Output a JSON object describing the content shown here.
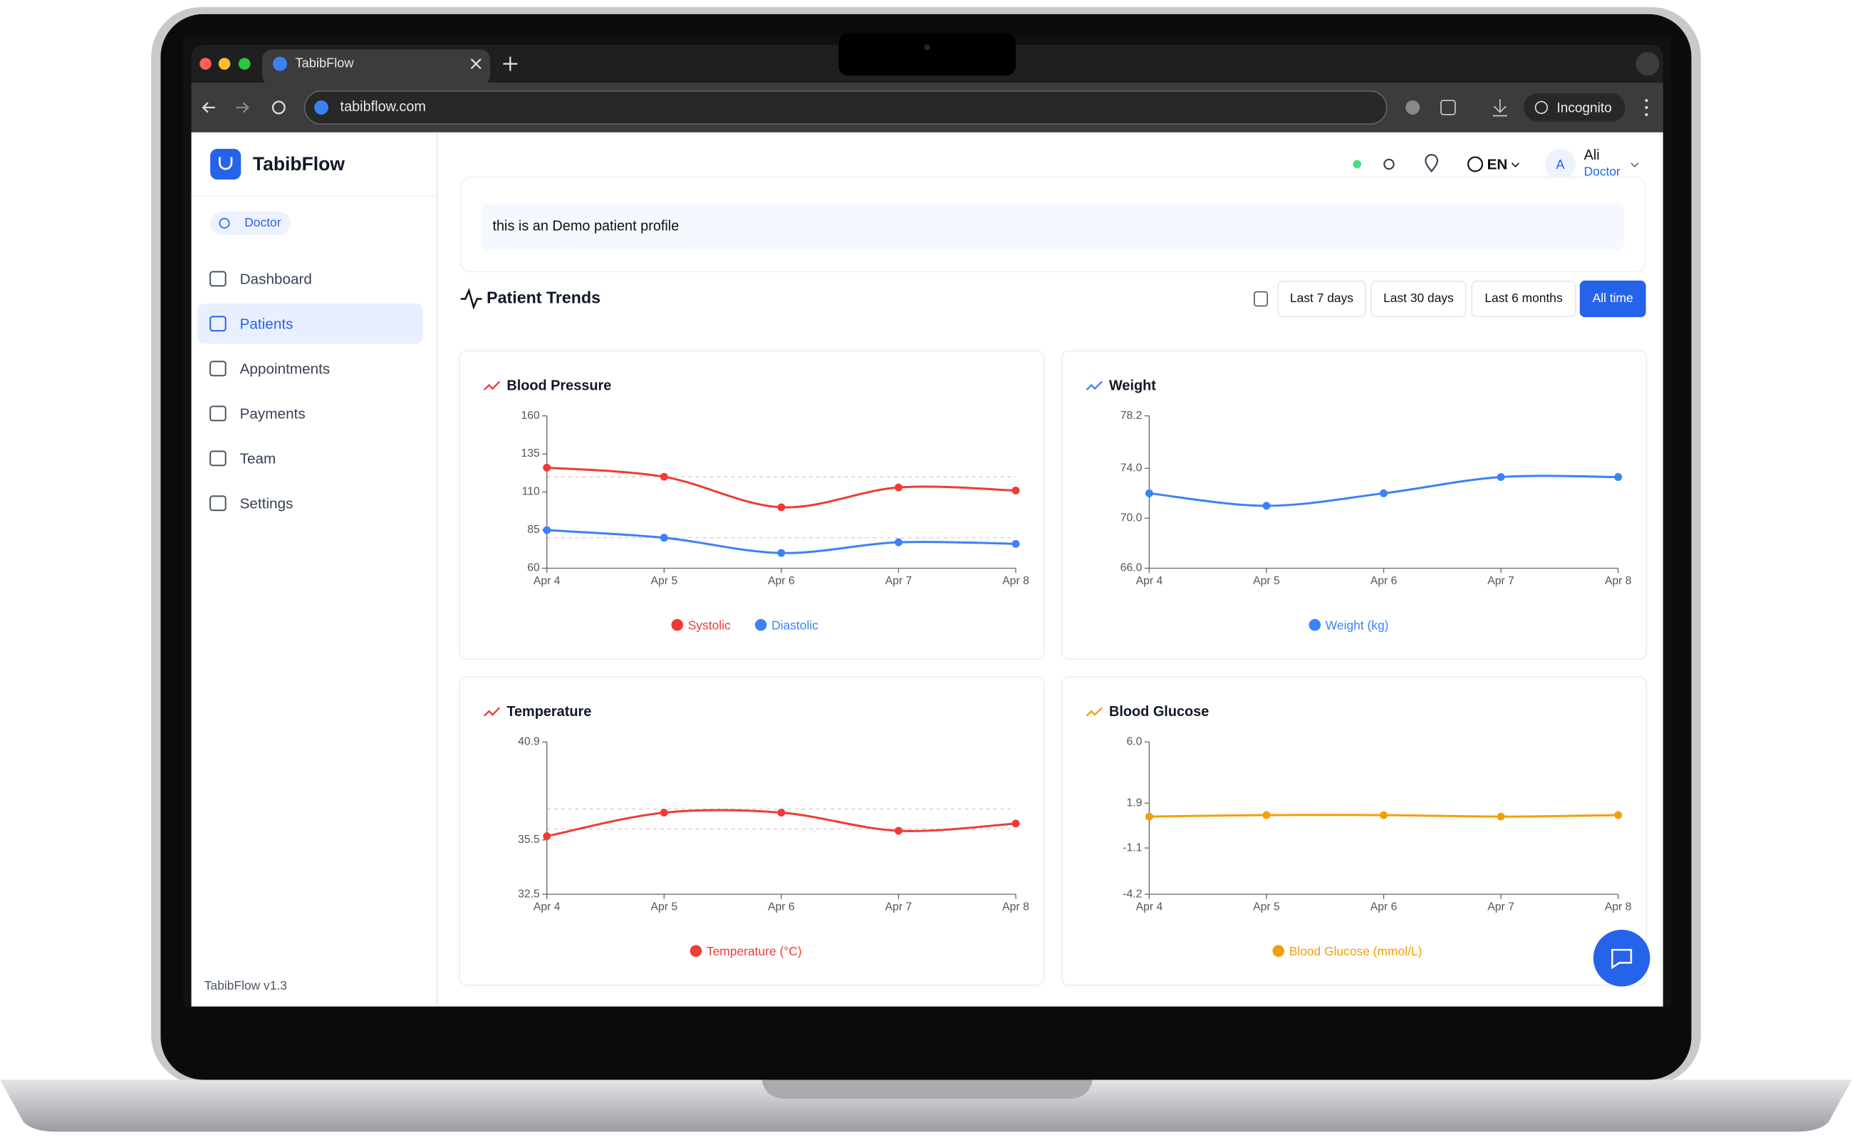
{
  "browser": {
    "tab_title": "TabibFlow",
    "url": "tabibflow.com",
    "mode": "Incognito"
  },
  "sidebar": {
    "brand": "TabibFlow",
    "role": "Doctor",
    "nav": [
      "Dashboard",
      "Patients",
      "Appointments",
      "Payments",
      "Team",
      "Settings"
    ],
    "active": 1,
    "version": "TabibFlow v1.3"
  },
  "header": {
    "language": "EN",
    "avatar": "A",
    "user_name": "Ali",
    "user_role": "Doctor"
  },
  "note": "this is an Demo patient profile",
  "trends": {
    "title": "Patient Trends",
    "ranges": [
      "Last 7 days",
      "Last 30 days",
      "Last 6 months",
      "All time"
    ],
    "active_range": 3
  },
  "chart_data": [
    {
      "type": "line",
      "title": "Blood Pressure",
      "categories": [
        "Apr 4",
        "Apr 5",
        "Apr 6",
        "Apr 7",
        "Apr 8"
      ],
      "series": [
        {
          "name": "Systolic",
          "color": "#ef3b36",
          "values": [
            126,
            120,
            100,
            113,
            111
          ]
        },
        {
          "name": "Diastolic",
          "color": "#3b82f6",
          "values": [
            85,
            80,
            70,
            77,
            76
          ]
        }
      ],
      "ylim": [
        60,
        160
      ],
      "yticks": [
        60,
        85,
        110,
        135,
        160
      ],
      "reference_lines": [
        120,
        80
      ]
    },
    {
      "type": "line",
      "title": "Weight",
      "categories": [
        "Apr 4",
        "Apr 5",
        "Apr 6",
        "Apr 7",
        "Apr 8"
      ],
      "series": [
        {
          "name": "Weight (kg)",
          "color": "#3b82f6",
          "values": [
            72,
            71,
            72,
            73.3,
            73.3
          ]
        }
      ],
      "ylim": [
        66,
        78.2
      ],
      "yticks": [
        {
          "value": 66,
          "label": "66.0"
        },
        {
          "value": 70,
          "label": "70.0"
        },
        {
          "value": 74,
          "label": "74.0"
        },
        78.2
      ]
    },
    {
      "type": "line",
      "title": "Temperature",
      "categories": [
        "Apr 4",
        "Apr 5",
        "Apr 6",
        "Apr 7",
        "Apr 8"
      ],
      "series": [
        {
          "name": "Temperature (°C)",
          "color": "#ef3b36",
          "values": [
            35.7,
            37,
            37,
            36,
            36.4
          ]
        }
      ],
      "ylim": [
        32.5,
        40.9
      ],
      "yticks": [
        32.5,
        35.5,
        40.9
      ],
      "reference_lines": [
        37.2,
        36.1
      ]
    },
    {
      "type": "line",
      "title": "Blood Glucose",
      "categories": [
        "Apr 4",
        "Apr 5",
        "Apr 6",
        "Apr 7",
        "Apr 8"
      ],
      "series": [
        {
          "name": "Blood Glucose (mmol/L)",
          "color": "#f59e0b",
          "values": [
            1.0,
            1.1,
            1.1,
            1.0,
            1.1
          ]
        }
      ],
      "ylim": [
        -4.2,
        6
      ],
      "yticks": [
        -4.2,
        -1.1,
        1.9,
        {
          "value": 6,
          "label": "6.0"
        }
      ]
    }
  ]
}
